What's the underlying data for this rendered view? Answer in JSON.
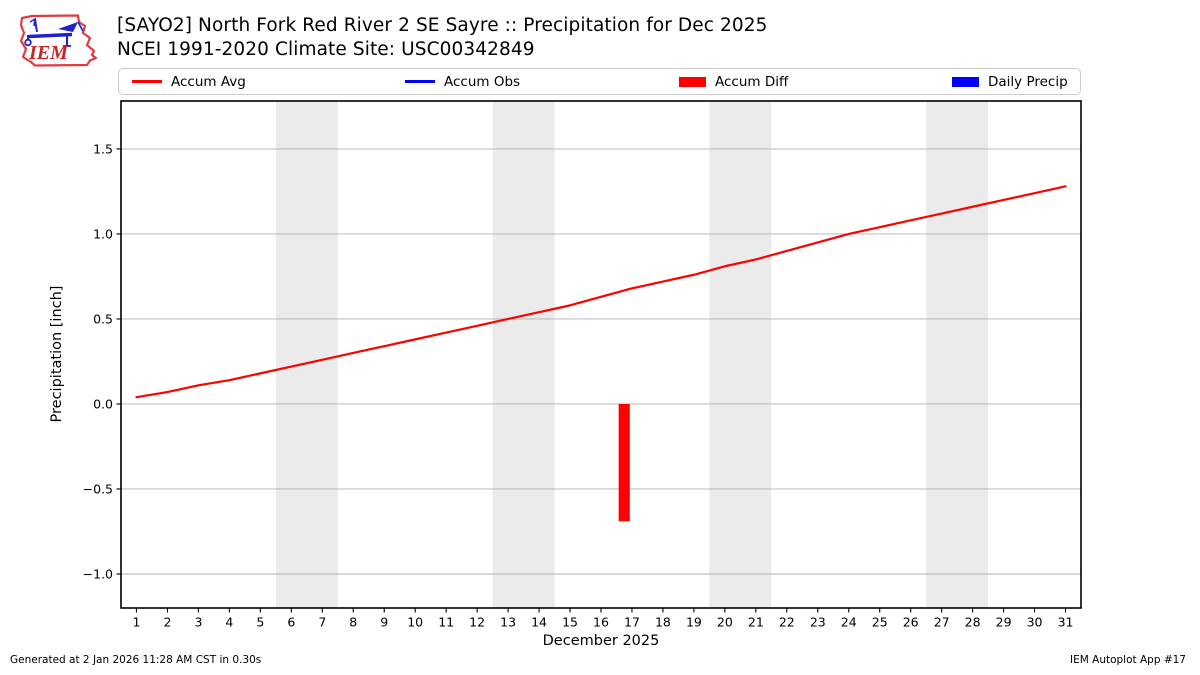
{
  "header": {
    "title_line1": "[SAYO2] North Fork Red River 2 SE Sayre :: Precipitation for Dec 2025",
    "title_line2": "NCEI 1991-2020 Climate Site: USC00342849",
    "logo_text": "IEM"
  },
  "legend": {
    "items": [
      {
        "label": "Accum Avg",
        "swatch": "line",
        "color": "#ff0000"
      },
      {
        "label": "Accum Obs",
        "swatch": "line",
        "color": "#0000ff"
      },
      {
        "label": "Accum Diff",
        "swatch": "patch",
        "color": "#ff0000"
      },
      {
        "label": "Daily Precip",
        "swatch": "patch",
        "color": "#0000ff"
      }
    ]
  },
  "chart_data": {
    "type": "line",
    "title": "[SAYO2] North Fork Red River 2 SE Sayre :: Precipitation for Dec 2025",
    "subtitle": "NCEI 1991-2020 Climate Site: USC00342849",
    "xlabel": "December 2025",
    "ylabel": "Precipitation [inch]",
    "x": [
      1,
      2,
      3,
      4,
      5,
      6,
      7,
      8,
      9,
      10,
      11,
      12,
      13,
      14,
      15,
      16,
      17,
      18,
      19,
      20,
      21,
      22,
      23,
      24,
      25,
      26,
      27,
      28,
      29,
      30,
      31
    ],
    "yticks": [
      -1.0,
      -0.5,
      0.0,
      0.5,
      1.0,
      1.5
    ],
    "xlim": [
      0.5,
      31.5
    ],
    "ylim": [
      -1.2,
      1.782
    ],
    "grid": "horizontal",
    "grid_color": "#b0b0b0",
    "weekend_band_color": "#ebebeb",
    "weekend_bands": [
      [
        5.5,
        7.5
      ],
      [
        12.5,
        14.5
      ],
      [
        19.5,
        21.5
      ],
      [
        26.5,
        28.5
      ]
    ],
    "series": [
      {
        "name": "Accum Avg",
        "type": "line",
        "color": "#ff0000",
        "values": [
          0.04,
          0.07,
          0.11,
          0.14,
          0.18,
          0.22,
          0.26,
          0.3,
          0.34,
          0.38,
          0.42,
          0.46,
          0.5,
          0.54,
          0.58,
          0.63,
          0.68,
          0.72,
          0.76,
          0.81,
          0.85,
          0.9,
          0.95,
          1.0,
          1.04,
          1.08,
          1.12,
          1.16,
          1.2,
          1.24,
          1.28
        ]
      },
      {
        "name": "Accum Obs",
        "type": "line",
        "color": "#0000ff",
        "values": []
      },
      {
        "name": "Accum Diff",
        "type": "bar",
        "color": "#ff0000",
        "bars": [
          {
            "day": 17,
            "x_center": 16.75,
            "bar_width": 0.36,
            "top": 0.0,
            "bottom": -0.69
          }
        ]
      },
      {
        "name": "Daily Precip",
        "type": "bar",
        "color": "#0000ff",
        "bars": []
      }
    ]
  },
  "footer": {
    "generated": "Generated at 2 Jan 2026 11:28 AM CST in 0.30s",
    "credit": "IEM Autoplot App #17"
  }
}
